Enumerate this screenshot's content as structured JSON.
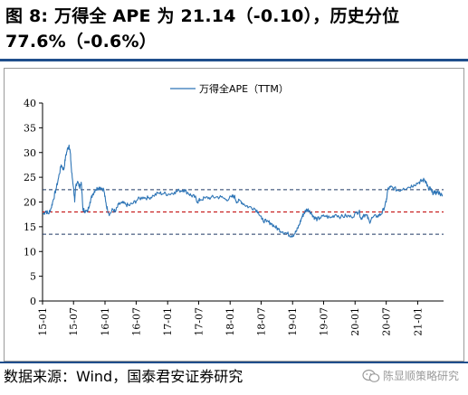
{
  "figure": {
    "title": "图 8:  万得全 APE 为 21.14（-0.10），历史分位 77.6%（-0.6%）",
    "source": "数据来源：Wind，国泰君安证券研究",
    "watermark": "陈显顺策略研究"
  },
  "chart_data": {
    "type": "line",
    "title": "",
    "xlabel": "",
    "ylabel": "",
    "ylim": [
      0,
      40
    ],
    "yticks": [
      0,
      5,
      10,
      15,
      20,
      25,
      30,
      35,
      40
    ],
    "xlim": [
      "2015-01",
      "2021-06"
    ],
    "xticks": [
      "15-01",
      "15-07",
      "16-01",
      "16-07",
      "17-01",
      "17-07",
      "18-01",
      "18-07",
      "19-01",
      "19-07",
      "20-01",
      "20-07",
      "21-01"
    ],
    "legend": {
      "position": "top-center",
      "entries": [
        "万得全APE（TTM）"
      ]
    },
    "series": [
      {
        "name": "万得全APE（TTM）",
        "color": "#2e75b6",
        "points": [
          [
            "2015-01-05",
            17.5
          ],
          [
            "2015-01-20",
            18.2
          ],
          [
            "2015-02-05",
            17.6
          ],
          [
            "2015-02-20",
            18.8
          ],
          [
            "2015-03-05",
            20.5
          ],
          [
            "2015-03-20",
            22.5
          ],
          [
            "2015-04-05",
            25.0
          ],
          [
            "2015-04-20",
            27.5
          ],
          [
            "2015-05-05",
            26.5
          ],
          [
            "2015-05-15",
            29.0
          ],
          [
            "2015-05-25",
            30.5
          ],
          [
            "2015-06-05",
            31.5
          ],
          [
            "2015-06-12",
            30.0
          ],
          [
            "2015-06-20",
            26.0
          ],
          [
            "2015-07-01",
            23.0
          ],
          [
            "2015-07-08",
            20.0
          ],
          [
            "2015-07-15",
            23.5
          ],
          [
            "2015-07-25",
            24.2
          ],
          [
            "2015-08-05",
            23.0
          ],
          [
            "2015-08-15",
            24.0
          ],
          [
            "2015-08-25",
            18.5
          ],
          [
            "2015-09-05",
            18.2
          ],
          [
            "2015-09-20",
            18.0
          ],
          [
            "2015-10-05",
            20.0
          ],
          [
            "2015-10-20",
            21.5
          ],
          [
            "2015-11-05",
            22.5
          ],
          [
            "2015-11-20",
            22.8
          ],
          [
            "2015-12-05",
            23.0
          ],
          [
            "2015-12-25",
            22.5
          ],
          [
            "2016-01-05",
            20.0
          ],
          [
            "2016-01-15",
            18.5
          ],
          [
            "2016-01-28",
            17.5
          ],
          [
            "2016-02-15",
            18.5
          ],
          [
            "2016-03-01",
            18.0
          ],
          [
            "2016-03-20",
            19.5
          ],
          [
            "2016-04-10",
            19.8
          ],
          [
            "2016-05-01",
            19.5
          ],
          [
            "2016-05-20",
            19.3
          ],
          [
            "2016-06-15",
            19.8
          ],
          [
            "2016-07-10",
            20.5
          ],
          [
            "2016-08-10",
            21.0
          ],
          [
            "2016-09-10",
            20.8
          ],
          [
            "2016-10-10",
            21.3
          ],
          [
            "2016-11-10",
            21.8
          ],
          [
            "2016-12-10",
            21.7
          ],
          [
            "2017-01-10",
            21.6
          ],
          [
            "2017-02-10",
            22.0
          ],
          [
            "2017-03-10",
            22.3
          ],
          [
            "2017-04-05",
            22.5
          ],
          [
            "2017-05-01",
            21.8
          ],
          [
            "2017-05-20",
            21.3
          ],
          [
            "2017-06-10",
            21.0
          ],
          [
            "2017-06-25",
            20.0
          ],
          [
            "2017-07-10",
            20.5
          ],
          [
            "2017-08-10",
            20.8
          ],
          [
            "2017-09-10",
            20.9
          ],
          [
            "2017-10-10",
            21.0
          ],
          [
            "2017-11-10",
            21.0
          ],
          [
            "2017-12-10",
            20.5
          ],
          [
            "2018-01-10",
            21.0
          ],
          [
            "2018-01-25",
            21.2
          ],
          [
            "2018-02-10",
            20.0
          ],
          [
            "2018-03-01",
            20.3
          ],
          [
            "2018-03-25",
            19.5
          ],
          [
            "2018-04-20",
            19.0
          ],
          [
            "2018-05-20",
            18.8
          ],
          [
            "2018-06-15",
            18.0
          ],
          [
            "2018-07-05",
            16.5
          ],
          [
            "2018-08-01",
            16.0
          ],
          [
            "2018-08-25",
            15.8
          ],
          [
            "2018-09-20",
            15.0
          ],
          [
            "2018-10-10",
            14.5
          ],
          [
            "2018-11-05",
            14.0
          ],
          [
            "2018-12-01",
            13.6
          ],
          [
            "2018-12-25",
            13.2
          ],
          [
            "2019-01-10",
            13.5
          ],
          [
            "2019-01-25",
            14.2
          ],
          [
            "2019-02-10",
            15.5
          ],
          [
            "2019-02-25",
            17.0
          ],
          [
            "2019-03-10",
            17.8
          ],
          [
            "2019-03-25",
            18.5
          ],
          [
            "2019-04-10",
            18.3
          ],
          [
            "2019-04-25",
            17.5
          ],
          [
            "2019-05-10",
            16.8
          ],
          [
            "2019-05-25",
            16.5
          ],
          [
            "2019-06-10",
            16.8
          ],
          [
            "2019-07-10",
            17.2
          ],
          [
            "2019-08-10",
            16.8
          ],
          [
            "2019-09-10",
            17.5
          ],
          [
            "2019-10-10",
            17.0
          ],
          [
            "2019-11-10",
            17.2
          ],
          [
            "2019-12-10",
            17.0
          ],
          [
            "2020-01-10",
            17.8
          ],
          [
            "2020-01-25",
            18.2
          ],
          [
            "2020-02-05",
            16.5
          ],
          [
            "2020-02-20",
            17.5
          ],
          [
            "2020-03-10",
            17.2
          ],
          [
            "2020-03-25",
            16.0
          ],
          [
            "2020-04-10",
            16.8
          ],
          [
            "2020-05-10",
            17.2
          ],
          [
            "2020-06-01",
            17.5
          ],
          [
            "2020-06-15",
            18.5
          ],
          [
            "2020-07-01",
            20.0
          ],
          [
            "2020-07-10",
            22.5
          ],
          [
            "2020-07-25",
            23.0
          ],
          [
            "2020-08-15",
            22.8
          ],
          [
            "2020-09-10",
            22.3
          ],
          [
            "2020-10-10",
            22.8
          ],
          [
            "2020-11-10",
            23.0
          ],
          [
            "2020-12-10",
            23.5
          ],
          [
            "2021-01-10",
            24.0
          ],
          [
            "2021-01-25",
            24.3
          ],
          [
            "2021-02-10",
            24.5
          ],
          [
            "2021-02-20",
            24.0
          ],
          [
            "2021-03-05",
            22.5
          ],
          [
            "2021-03-15",
            22.8
          ],
          [
            "2021-03-25",
            22.0
          ],
          [
            "2021-04-10",
            21.8
          ],
          [
            "2021-04-25",
            22.0
          ],
          [
            "2021-05-10",
            21.8
          ],
          [
            "2021-05-25",
            21.14
          ]
        ]
      }
    ],
    "reference_lines": [
      {
        "y": 22.5,
        "color": "#1f3864",
        "style": "dashed"
      },
      {
        "y": 18.0,
        "color": "#c00000",
        "style": "dashed"
      },
      {
        "y": 13.5,
        "color": "#1f3864",
        "style": "dashed"
      }
    ],
    "grid": false
  }
}
